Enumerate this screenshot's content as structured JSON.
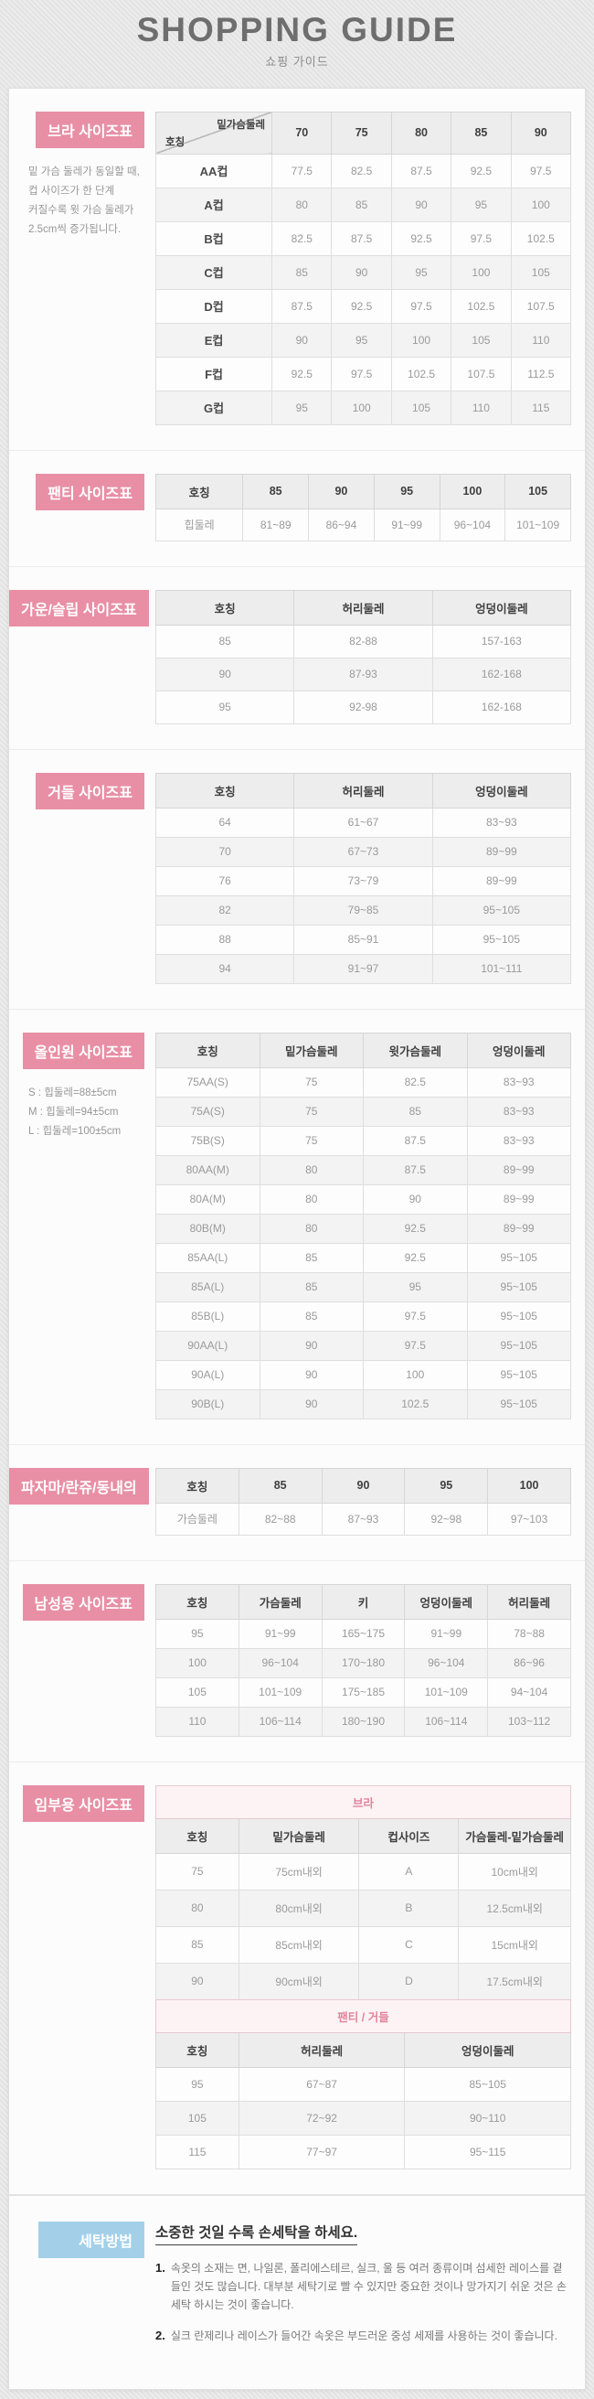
{
  "header": {
    "title": "SHOPPING GUIDE",
    "subtitle": "쇼핑 가이드"
  },
  "colors": {
    "badge_pink": "#e88fa5",
    "badge_blue": "#a3d0e8",
    "group_header_pink_bg": "#fdf3f5",
    "group_header_pink_text": "#e2849b"
  },
  "sections": [
    {
      "id": "bra",
      "badge": "브라 사이즈표",
      "badge_style": "pink",
      "note_lines": [
        "밑 가슴 둘레가 동일할 때,",
        "컵 사이즈가 한 단계",
        "커질수록 윗 가슴 둘레가",
        "2.5cm씩 증가됩니다."
      ],
      "tables": [
        {
          "name": "bra",
          "corner": {
            "top": "밑가슴둘레",
            "bottom": "호칭"
          },
          "headers": [
            "70",
            "75",
            "80",
            "85",
            "90"
          ],
          "bold_first_col": true,
          "rows": [
            [
              "AA컵",
              "77.5",
              "82.5",
              "87.5",
              "92.5",
              "97.5"
            ],
            [
              "A컵",
              "80",
              "85",
              "90",
              "95",
              "100"
            ],
            [
              "B컵",
              "82.5",
              "87.5",
              "92.5",
              "97.5",
              "102.5"
            ],
            [
              "C컵",
              "85",
              "90",
              "95",
              "100",
              "105"
            ],
            [
              "D컵",
              "87.5",
              "92.5",
              "97.5",
              "102.5",
              "107.5"
            ],
            [
              "E컵",
              "90",
              "95",
              "100",
              "105",
              "110"
            ],
            [
              "F컵",
              "92.5",
              "97.5",
              "102.5",
              "107.5",
              "112.5"
            ],
            [
              "G컵",
              "95",
              "100",
              "105",
              "110",
              "115"
            ]
          ]
        }
      ]
    },
    {
      "id": "panty",
      "badge": "팬티 사이즈표",
      "badge_style": "pink",
      "tables": [
        {
          "name": "panty",
          "headers": [
            "호칭",
            "85",
            "90",
            "95",
            "100",
            "105"
          ],
          "rows": [
            [
              "힙둘레",
              "81~89",
              "86~94",
              "91~99",
              "96~104",
              "101~109"
            ]
          ]
        }
      ]
    },
    {
      "id": "gown-slip",
      "badge": "가운/슬립 사이즈표",
      "badge_style": "pink",
      "tables": [
        {
          "name": "gown-slip",
          "headers": [
            "호칭",
            "허리둘레",
            "엉덩이둘레"
          ],
          "rows": [
            [
              "85",
              "82-88",
              "157-163"
            ],
            [
              "90",
              "87-93",
              "162-168"
            ],
            [
              "95",
              "92-98",
              "162-168"
            ]
          ]
        }
      ]
    },
    {
      "id": "girdle",
      "badge": "거들 사이즈표",
      "badge_style": "pink",
      "tables": [
        {
          "name": "girdle",
          "headers": [
            "호칭",
            "허리둘레",
            "엉덩이둘레"
          ],
          "rows": [
            [
              "64",
              "61~67",
              "83~93"
            ],
            [
              "70",
              "67~73",
              "89~99"
            ],
            [
              "76",
              "73~79",
              "89~99"
            ],
            [
              "82",
              "79~85",
              "95~105"
            ],
            [
              "88",
              "85~91",
              "95~105"
            ],
            [
              "94",
              "91~97",
              "101~111"
            ]
          ]
        }
      ]
    },
    {
      "id": "all-in-one",
      "badge": "올인원 사이즈표",
      "badge_style": "pink",
      "note_lines": [
        "S : 힙둘레=88±5cm",
        "M : 힙둘레=94±5cm",
        "L : 힙둘레=100±5cm"
      ],
      "tables": [
        {
          "name": "all-in-one",
          "headers": [
            "호칭",
            "밑가슴둘레",
            "윗가슴둘레",
            "엉덩이둘레"
          ],
          "rows": [
            [
              "75AA(S)",
              "75",
              "82.5",
              "83~93"
            ],
            [
              "75A(S)",
              "75",
              "85",
              "83~93"
            ],
            [
              "75B(S)",
              "75",
              "87.5",
              "83~93"
            ],
            [
              "80AA(M)",
              "80",
              "87.5",
              "89~99"
            ],
            [
              "80A(M)",
              "80",
              "90",
              "89~99"
            ],
            [
              "80B(M)",
              "80",
              "92.5",
              "89~99"
            ],
            [
              "85AA(L)",
              "85",
              "92.5",
              "95~105"
            ],
            [
              "85A(L)",
              "85",
              "95",
              "95~105"
            ],
            [
              "85B(L)",
              "85",
              "97.5",
              "95~105"
            ],
            [
              "90AA(L)",
              "90",
              "97.5",
              "95~105"
            ],
            [
              "90A(L)",
              "90",
              "100",
              "95~105"
            ],
            [
              "90B(L)",
              "90",
              "102.5",
              "95~105"
            ]
          ]
        }
      ]
    },
    {
      "id": "pajama",
      "badge": "파자마/란쥬/동내의",
      "badge_style": "pink",
      "tables": [
        {
          "name": "pajama",
          "headers": [
            "호칭",
            "85",
            "90",
            "95",
            "100"
          ],
          "rows": [
            [
              "가슴둘레",
              "82~88",
              "87~93",
              "92~98",
              "97~103"
            ]
          ]
        }
      ]
    },
    {
      "id": "mens",
      "badge": "남성용 사이즈표",
      "badge_style": "pink",
      "tables": [
        {
          "name": "mens",
          "headers": [
            "호칭",
            "가슴둘레",
            "키",
            "엉덩이둘레",
            "허리둘레"
          ],
          "rows": [
            [
              "95",
              "91~99",
              "165~175",
              "91~99",
              "78~88"
            ],
            [
              "100",
              "96~104",
              "170~180",
              "96~104",
              "86~96"
            ],
            [
              "105",
              "101~109",
              "175~185",
              "101~109",
              "94~104"
            ],
            [
              "110",
              "106~114",
              "180~190",
              "106~114",
              "103~112"
            ]
          ]
        }
      ]
    },
    {
      "id": "maternity",
      "badge": "임부용 사이즈표",
      "badge_style": "pink",
      "tables": [
        {
          "name": "maternity-bra",
          "group": "브라",
          "headers": [
            "호칭",
            "밑가슴둘레",
            "컵사이즈",
            "가슴둘레-밑가슴둘레"
          ],
          "rows": [
            [
              "75",
              "75cm내외",
              "A",
              "10cm내외"
            ],
            [
              "80",
              "80cm내외",
              "B",
              "12.5cm내외"
            ],
            [
              "85",
              "85cm내외",
              "C",
              "15cm내외"
            ],
            [
              "90",
              "90cm내외",
              "D",
              "17.5cm내외"
            ]
          ]
        },
        {
          "name": "maternity-panty-girdle",
          "group": "팬티 / 거들",
          "headers": [
            "호칭",
            "허리둘레",
            "엉덩이둘레"
          ],
          "rows": [
            [
              "95",
              "67~87",
              "85~105"
            ],
            [
              "105",
              "72~92",
              "90~110"
            ],
            [
              "115",
              "77~97",
              "95~115"
            ]
          ]
        }
      ]
    },
    {
      "id": "washing",
      "badge": "세탁방법",
      "badge_style": "blue",
      "type": "notes",
      "heading": "소중한 것일 수록 손세탁을 하세요.",
      "items": [
        {
          "num": "1.",
          "text": "속옷의 소재는 면, 나일론, 폴리에스테르, 실크, 울 등 여러 종류이며 섬세한 레이스를 곁들인 것도 많습니다. 대부분 세탁기로 빨 수 있지만 중요한 것이나 망가지기 쉬운 것은 손세탁 하시는 것이 좋습니다."
        },
        {
          "num": "2.",
          "text": "실크 란제리나 레이스가 들어간 속옷은 부드러운 중성 세제를 사용하는 것이 좋습니다."
        }
      ]
    }
  ]
}
